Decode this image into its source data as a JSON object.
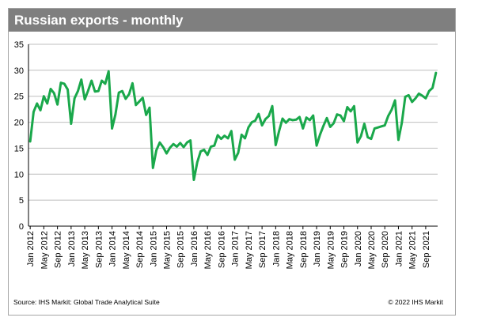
{
  "header": {
    "title": "Russian exports - monthly"
  },
  "footer": {
    "source": "Source: IHS Markit: Global Trade Analytical Suite",
    "copyright": "© 2022 IHS Markit"
  },
  "colors": {
    "line": "#1aa84b",
    "title_bar": "#7f7f7f",
    "grid": "#bfbfbf"
  },
  "chart_data": {
    "type": "line",
    "title": "Russian exports - monthly",
    "xlabel": "",
    "ylabel": "",
    "ylim": [
      0,
      35
    ],
    "yticks": [
      0,
      5,
      10,
      15,
      20,
      25,
      30,
      35
    ],
    "grid": true,
    "x_tick_labels": [
      "Jan 2012",
      "May 2012",
      "Sep 2012",
      "Jan 2013",
      "May 2013",
      "Sep 2013",
      "Jan 2014",
      "May 2014",
      "Sep 2014",
      "Jan 2015",
      "May 2015",
      "Sep 2015",
      "Jan 2016",
      "May 2016",
      "Sep 2016",
      "Jan 2017",
      "May 2017",
      "Sep 2017",
      "Jan 2018",
      "May 2018",
      "Sep 2018",
      "Jan 2019",
      "May 2019",
      "Sep 2019",
      "Jan 2020",
      "May 2020",
      "Sep 2020",
      "Jan 2021",
      "May 2021",
      "Sep 2021"
    ],
    "series": [
      {
        "values": [
          16.3,
          22.0,
          23.6,
          22.3,
          25.0,
          23.6,
          26.4,
          25.6,
          23.4,
          27.6,
          27.4,
          26.3,
          19.7,
          24.6,
          26.0,
          28.2,
          24.4,
          26.1,
          28.0,
          25.9,
          26.0,
          28.0,
          27.4,
          29.8,
          18.8,
          21.5,
          25.7,
          26.0,
          24.5,
          25.4,
          27.5,
          23.3,
          24.0,
          24.7,
          21.4,
          22.8,
          11.2,
          14.6,
          16.1,
          15.2,
          14.0,
          15.1,
          15.8,
          15.3,
          16.0,
          15.2,
          16.1,
          16.5,
          8.9,
          12.3,
          14.4,
          14.7,
          13.7,
          15.3,
          15.5,
          17.5,
          16.8,
          17.4,
          16.9,
          18.3,
          12.8,
          14.1,
          17.6,
          16.9,
          19.0,
          20.0,
          20.3,
          21.6,
          19.4,
          20.6,
          21.2,
          23.1,
          15.6,
          18.3,
          20.7,
          19.9,
          20.6,
          20.4,
          20.5,
          21.0,
          18.8,
          20.9,
          20.4,
          21.3,
          15.5,
          17.6,
          19.3,
          20.8,
          19.1,
          19.8,
          21.5,
          21.3,
          20.2,
          22.9,
          22.1,
          23.1,
          16.1,
          17.3,
          19.7,
          17.1,
          16.8,
          18.8,
          19.0,
          19.2,
          19.4,
          21.2,
          22.4,
          24.2,
          16.6,
          19.9,
          24.9,
          25.2,
          23.9,
          24.6,
          25.5,
          25.1,
          24.6,
          26.0,
          26.6,
          29.5
        ]
      }
    ]
  }
}
